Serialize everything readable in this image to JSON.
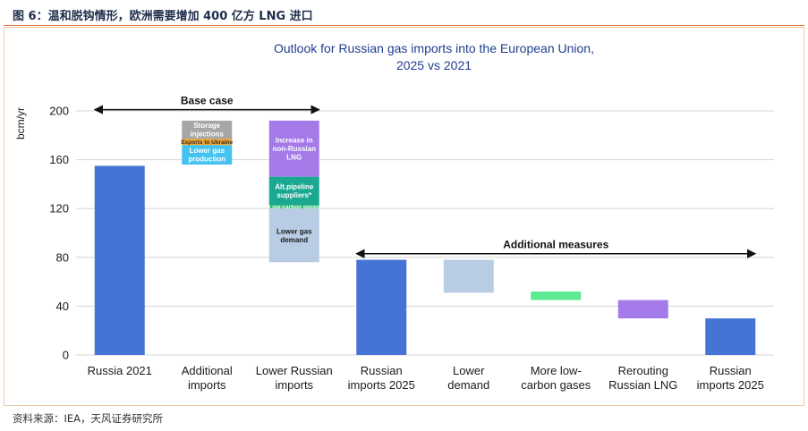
{
  "figure": {
    "caption": "图 6：温和脱钩情形，欧洲需要增加 400 亿方 LNG 进口",
    "source": "资料来源：IEA，天风证券研究所"
  },
  "colors": {
    "blue": "#4574d6",
    "lightblue": "#b8cce4",
    "gray": "#a6a6a6",
    "orange": "#f2a32a",
    "cyan": "#44c3f0",
    "purple": "#a47ae8",
    "teal": "#1aa891",
    "green": "#21b36b",
    "mint": "#5eea95",
    "grid": "#d6d6d6",
    "title": "#1f3e8e"
  },
  "chart_data": {
    "type": "bar",
    "subtype": "waterfall",
    "title": "Outlook for Russian gas imports into the European Union,",
    "subtitle": "2025 vs 2021",
    "ylabel": "bcm/yr",
    "xlabel": "",
    "ylim": [
      0,
      200
    ],
    "yticks": [
      0,
      40,
      80,
      120,
      160,
      200
    ],
    "grid": true,
    "categories": [
      [
        "Russia 2021"
      ],
      [
        "Additional",
        "imports"
      ],
      [
        "Lower Russian",
        "imports"
      ],
      [
        "Russian",
        "imports 2025"
      ],
      [
        "Lower",
        "demand"
      ],
      [
        "More low-",
        "carbon gases"
      ],
      [
        "Rerouting",
        "Russian LNG"
      ],
      [
        "Russian",
        "imports 2025"
      ]
    ],
    "segments": [
      {
        "category": 0,
        "from": 0,
        "to": 155,
        "color": "blue",
        "label": []
      },
      {
        "category": 1,
        "from": 177,
        "to": 192,
        "color": "gray",
        "label": [
          "Storage",
          "injections"
        ],
        "label_color": "#ffffff"
      },
      {
        "category": 1,
        "from": 172,
        "to": 177,
        "color": "orange",
        "label": [
          "Exports to Ukraine"
        ],
        "label_color": "#333333"
      },
      {
        "category": 1,
        "from": 156,
        "to": 172,
        "color": "cyan",
        "label": [
          "Lower gas",
          "production"
        ],
        "label_color": "#ffffff"
      },
      {
        "category": 2,
        "from": 146,
        "to": 192,
        "color": "purple",
        "label": [
          "Increase in",
          "non-Russian",
          "LNG"
        ],
        "label_color": "#ffffff"
      },
      {
        "category": 2,
        "from": 123,
        "to": 146,
        "color": "teal",
        "label": [
          "Alt.pipeline",
          "suppliers*"
        ],
        "label_color": "#ffffff"
      },
      {
        "category": 2,
        "from": 120,
        "to": 123,
        "color": "green",
        "label": [
          "Low-carbon gases"
        ],
        "label_color": "#ffffff"
      },
      {
        "category": 2,
        "from": 76,
        "to": 120,
        "color": "lightblue",
        "label": [
          "Lower gas",
          "demand"
        ],
        "label_color": "#1a1a1a"
      },
      {
        "category": 3,
        "from": 0,
        "to": 78,
        "color": "blue",
        "label": []
      },
      {
        "category": 4,
        "from": 51,
        "to": 78,
        "color": "lightblue",
        "label": []
      },
      {
        "category": 5,
        "from": 45,
        "to": 52,
        "color": "mint",
        "label": []
      },
      {
        "category": 6,
        "from": 30,
        "to": 45,
        "color": "purple",
        "label": []
      },
      {
        "category": 7,
        "from": 0,
        "to": 30,
        "color": "blue",
        "label": []
      }
    ],
    "annotations": [
      {
        "text": "Base case",
        "from_category": 0,
        "to_category": 2,
        "y": 201
      },
      {
        "text": "Additional measures",
        "from_category": 3,
        "to_category": 7,
        "y": 83
      }
    ]
  }
}
